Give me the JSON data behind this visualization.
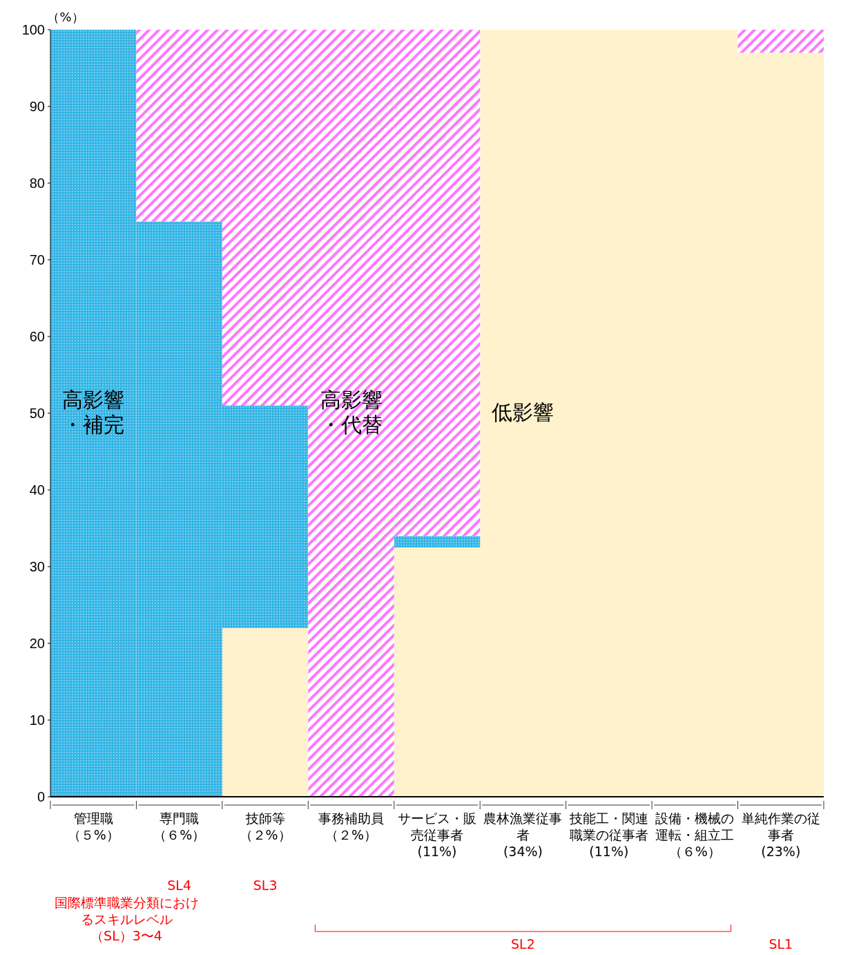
{
  "chart_data": {
    "type": "bar",
    "stacked": true,
    "ylabel": "（%）",
    "categories": [
      "管理職（５%）",
      "専門職（６%）",
      "技師等（２%）",
      "事務補助員（２%）",
      "サービス・販売従事者(11%)",
      "農林漁業従事者(34%)",
      "技能工・関連職業の従事者(11%)",
      "設備・機械の運転・組立工（６%）",
      "単純作業の従事者(23%)"
    ],
    "series": [
      {
        "name": "低影響",
        "color": "#fff2cc",
        "values": [
          0,
          0,
          22,
          0,
          32.5,
          100,
          100,
          100,
          97
        ]
      },
      {
        "name": "高影響・補完",
        "color": "#33b5e5",
        "values": [
          100,
          75,
          29,
          0,
          1.5,
          0,
          0,
          0,
          0
        ]
      },
      {
        "name": "高影響・代替",
        "color": "#ff77ff",
        "values": [
          0,
          25,
          49,
          100,
          66,
          0,
          0,
          0,
          3
        ]
      }
    ],
    "ylim": [
      0,
      100
    ],
    "yticks": [
      0,
      10,
      20,
      30,
      40,
      50,
      60,
      70,
      80,
      90,
      100
    ],
    "annotations": [
      "国際標準職業分類におけるスキルレベル（SL）3〜4",
      "SL4",
      "SL3",
      "SL2",
      "SL1"
    ]
  }
}
